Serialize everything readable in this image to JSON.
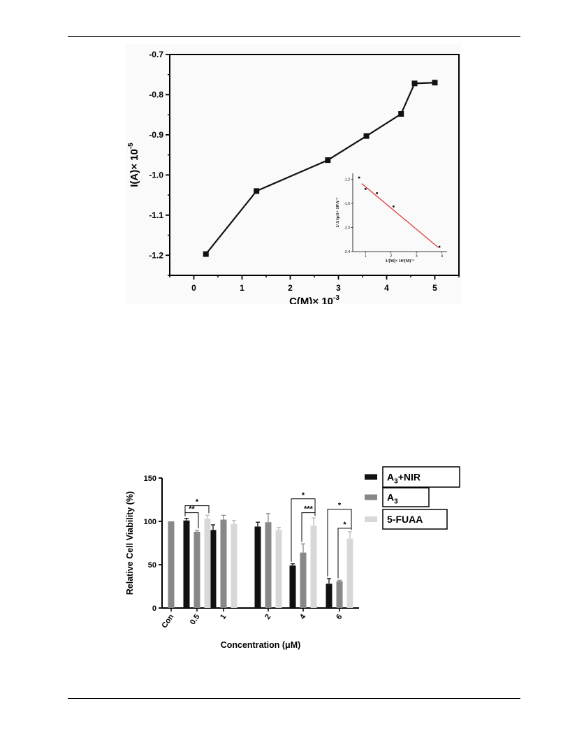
{
  "chart_data": [
    {
      "type": "line",
      "xlabel_base": "C(M)× 10",
      "xlabel_exp": "-3",
      "ylabel_base": "I(A)× 10",
      "ylabel_exp": "-5",
      "xlim": [
        -0.5,
        5.5
      ],
      "ylim": [
        -1.25,
        -0.7
      ],
      "xticks": [
        0,
        1,
        2,
        3,
        4,
        5
      ],
      "xtick_labels": [
        "0",
        "1",
        "2",
        "3",
        "4",
        "5"
      ],
      "yticks": [
        -1.2,
        -1.1,
        -1.0,
        -0.9,
        -0.8,
        -0.7
      ],
      "ytick_labels": [
        "-1.2",
        "-1.1",
        "-1.0",
        "-0.9",
        "-0.8",
        "-0.7"
      ],
      "series": [
        {
          "x": [
            0.25,
            1.3,
            2.78,
            3.58,
            4.3,
            4.58,
            5.0
          ],
          "y": [
            -1.197,
            -1.04,
            -0.963,
            -0.903,
            -0.848,
            -0.772,
            -0.77
          ],
          "color": "#111111"
        }
      ],
      "inset": {
        "type": "scatter",
        "xlabel": "1/[M]× 10³(M)⁻¹",
        "ylabel": "1/ Δ Ip/1× 10⁵A⁻¹",
        "xlim": [
          0.5,
          4.2
        ],
        "ylim": [
          -2.4,
          -1.1
        ],
        "xticks": [
          1,
          2,
          3,
          4
        ],
        "xtick_labels": [
          "1",
          "2",
          "3",
          "4"
        ],
        "yticks": [
          -1.2,
          -1.6,
          -2.0,
          -2.4
        ],
        "ytick_labels": [
          "-1.2",
          "-1.6",
          "-2.0",
          "-2.4"
        ],
        "points_x": [
          0.75,
          1.0,
          1.45,
          2.1,
          3.9
        ],
        "points_y": [
          -1.17,
          -1.36,
          -1.43,
          -1.65,
          -2.32
        ],
        "fit_x": [
          0.85,
          3.85
        ],
        "fit_y": [
          -1.27,
          -2.33
        ],
        "fit_color": "#e03030"
      }
    },
    {
      "type": "bar",
      "ylabel": "Relative Cell Viability (%)",
      "xlabel": "Concentration (μM)",
      "ylim": [
        0,
        150
      ],
      "yticks": [
        0,
        50,
        100,
        150
      ],
      "ytick_labels": [
        "0",
        "50",
        "100",
        "150"
      ],
      "categories": [
        "Con",
        "0.5",
        "1",
        "2",
        "4",
        "6"
      ],
      "con_value": 100,
      "con_color": "#888888",
      "series": [
        {
          "name": "A₃+NIR",
          "name_base": "A",
          "name_sub": "3",
          "name_rest": "+NIR",
          "color": "#111111",
          "values": [
            100,
            101,
            90,
            94,
            49,
            28
          ],
          "errors": [
            0,
            2.5,
            6,
            5,
            2,
            6
          ]
        },
        {
          "name": "A₃",
          "name_base": "A",
          "name_sub": "3",
          "name_rest": "",
          "color": "#888888",
          "values": [
            100,
            88,
            102,
            99,
            64,
            31
          ],
          "errors": [
            0,
            1.5,
            5,
            10,
            10,
            1
          ]
        },
        {
          "name": "5-FUAA",
          "name_base": "5-FUAA",
          "name_sub": "",
          "name_rest": "",
          "color": "#d8d8d8",
          "values": [
            100,
            103,
            97,
            90,
            95,
            80
          ],
          "errors": [
            0,
            4,
            4,
            3,
            9,
            8
          ]
        }
      ],
      "significance": [
        {
          "label": "*",
          "category": 1,
          "from": 0,
          "to": 2,
          "level": 118
        },
        {
          "label": "**",
          "category": 1,
          "from": 0,
          "to": 1,
          "level": 110
        },
        {
          "label": "*",
          "category": 4,
          "from": 0,
          "to": 2,
          "level": 126
        },
        {
          "label": "***",
          "category": 4,
          "from": 1,
          "to": 2,
          "level": 110
        },
        {
          "label": "*",
          "category": 5,
          "from": 0,
          "to": 2,
          "level": 114
        },
        {
          "label": "*",
          "category": 5,
          "from": 1,
          "to": 2,
          "level": 92
        }
      ]
    }
  ]
}
